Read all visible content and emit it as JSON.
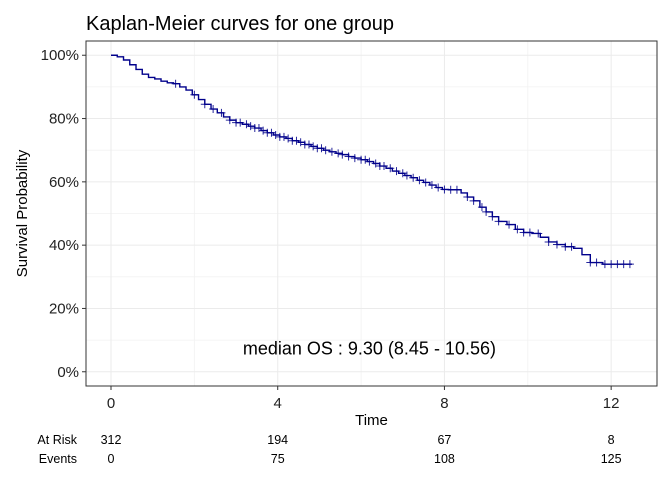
{
  "chart_data": {
    "type": "line",
    "title": "Kaplan-Meier curves for one group",
    "xlabel": "Time",
    "ylabel": "Survival Probability",
    "xlim": [
      -0.6,
      13.1
    ],
    "ylim": [
      -0.045,
      1.045
    ],
    "x_ticks": [
      0,
      4,
      8,
      12
    ],
    "y_ticks": [
      0,
      0.2,
      0.4,
      0.6,
      0.8,
      1.0
    ],
    "y_tick_labels": [
      "0%",
      "20%",
      "40%",
      "60%",
      "80%",
      "100%"
    ],
    "grid": true,
    "legend": "none",
    "line_color": "#00008B",
    "annotation": {
      "text": "median  OS :  9.30 (8.45 - 10.56)",
      "x": 6.2,
      "y": 0.055
    },
    "series": [
      {
        "x": [
          0,
          0.15,
          0.3,
          0.45,
          0.6,
          0.75,
          0.9,
          1.05,
          1.2,
          1.35,
          1.5,
          1.65,
          1.8,
          1.95,
          2.1,
          2.25,
          2.4,
          2.55,
          2.7,
          2.85,
          3.0,
          3.15,
          3.3,
          3.45,
          3.6,
          3.75,
          3.9,
          4.05,
          4.2,
          4.35,
          4.5,
          4.65,
          4.8,
          4.95,
          5.1,
          5.25,
          5.4,
          5.55,
          5.7,
          5.85,
          6.0,
          6.15,
          6.3,
          6.45,
          6.6,
          6.75,
          6.9,
          7.05,
          7.2,
          7.35,
          7.5,
          7.65,
          7.8,
          7.95,
          8.1,
          8.25,
          8.4,
          8.55,
          8.7,
          8.85,
          9.0,
          9.15,
          9.3,
          9.5,
          9.7,
          9.9,
          10.1,
          10.3,
          10.5,
          10.7,
          10.9,
          11.1,
          11.3,
          11.5,
          11.8,
          12.1,
          12.5
        ],
        "y": [
          1.0,
          0.995,
          0.985,
          0.97,
          0.955,
          0.94,
          0.93,
          0.925,
          0.918,
          0.913,
          0.91,
          0.9,
          0.89,
          0.875,
          0.86,
          0.845,
          0.83,
          0.818,
          0.805,
          0.795,
          0.787,
          0.782,
          0.776,
          0.77,
          0.762,
          0.755,
          0.748,
          0.742,
          0.737,
          0.73,
          0.725,
          0.718,
          0.712,
          0.706,
          0.7,
          0.695,
          0.69,
          0.686,
          0.68,
          0.675,
          0.67,
          0.664,
          0.658,
          0.65,
          0.643,
          0.634,
          0.627,
          0.62,
          0.613,
          0.605,
          0.598,
          0.59,
          0.582,
          0.576,
          0.575,
          0.575,
          0.565,
          0.552,
          0.54,
          0.52,
          0.505,
          0.49,
          0.475,
          0.465,
          0.45,
          0.44,
          0.437,
          0.425,
          0.41,
          0.402,
          0.395,
          0.39,
          0.37,
          0.345,
          0.34,
          0.34,
          0.34
        ],
        "censor_x": [
          1.55,
          2.0,
          2.25,
          2.45,
          2.65,
          2.85,
          3.0,
          3.1,
          3.25,
          3.35,
          3.45,
          3.55,
          3.65,
          3.75,
          3.85,
          3.95,
          4.05,
          4.15,
          4.25,
          4.35,
          4.45,
          4.55,
          4.65,
          4.75,
          4.85,
          4.95,
          5.05,
          5.15,
          5.3,
          5.45,
          5.55,
          5.7,
          5.85,
          6.0,
          6.1,
          6.2,
          6.35,
          6.45,
          6.55,
          6.7,
          6.85,
          7.0,
          7.1,
          7.25,
          7.4,
          7.55,
          7.7,
          7.85,
          8.0,
          8.15,
          8.3,
          8.55,
          8.7,
          8.9,
          9.0,
          9.15,
          9.3,
          9.55,
          9.75,
          9.9,
          10.05,
          10.25,
          10.5,
          10.7,
          10.9,
          11.05,
          11.5,
          11.65,
          11.85,
          12.0,
          12.15,
          12.3,
          12.45
        ]
      }
    ],
    "risk_table": {
      "rows": [
        {
          "label": "At Risk",
          "values": [
            "312",
            "194",
            "67",
            "8"
          ]
        },
        {
          "label": "Events",
          "values": [
            "0",
            "75",
            "108",
            "125"
          ]
        }
      ]
    }
  }
}
